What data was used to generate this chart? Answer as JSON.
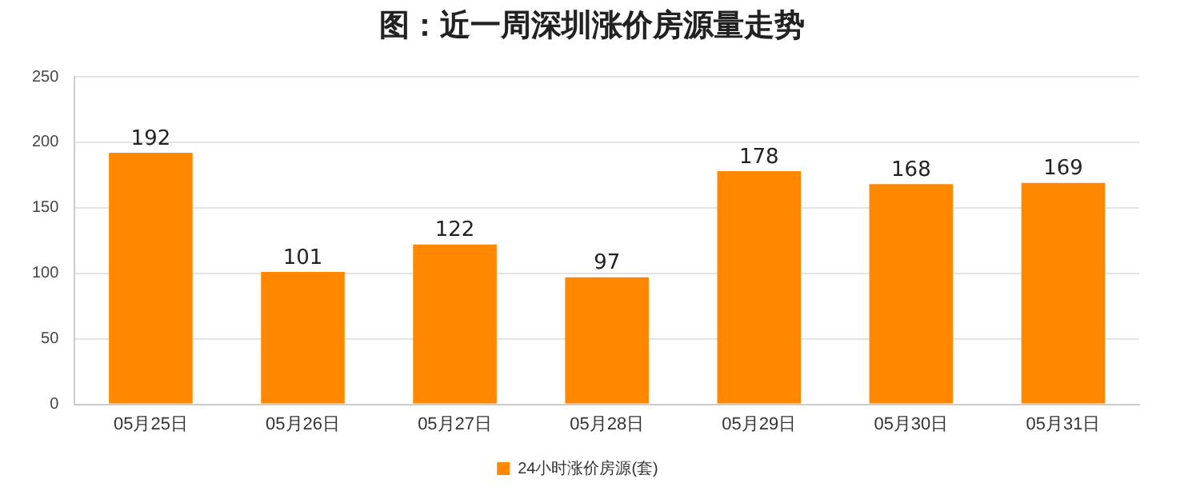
{
  "chart_data": {
    "type": "bar",
    "title": "图：近一周深圳涨价房源量走势",
    "categories": [
      "05月25日",
      "05月26日",
      "05月27日",
      "05月28日",
      "05月29日",
      "05月30日",
      "05月31日"
    ],
    "series": [
      {
        "name": "24小时涨价房源(套)",
        "color": "#ff8800",
        "values": [
          192,
          101,
          122,
          97,
          178,
          168,
          169
        ]
      }
    ],
    "ylim": [
      0,
      250
    ],
    "yticks": [
      0,
      50,
      100,
      150,
      200,
      250
    ],
    "grid": "y",
    "legend": "bottom",
    "data_labels": true
  }
}
